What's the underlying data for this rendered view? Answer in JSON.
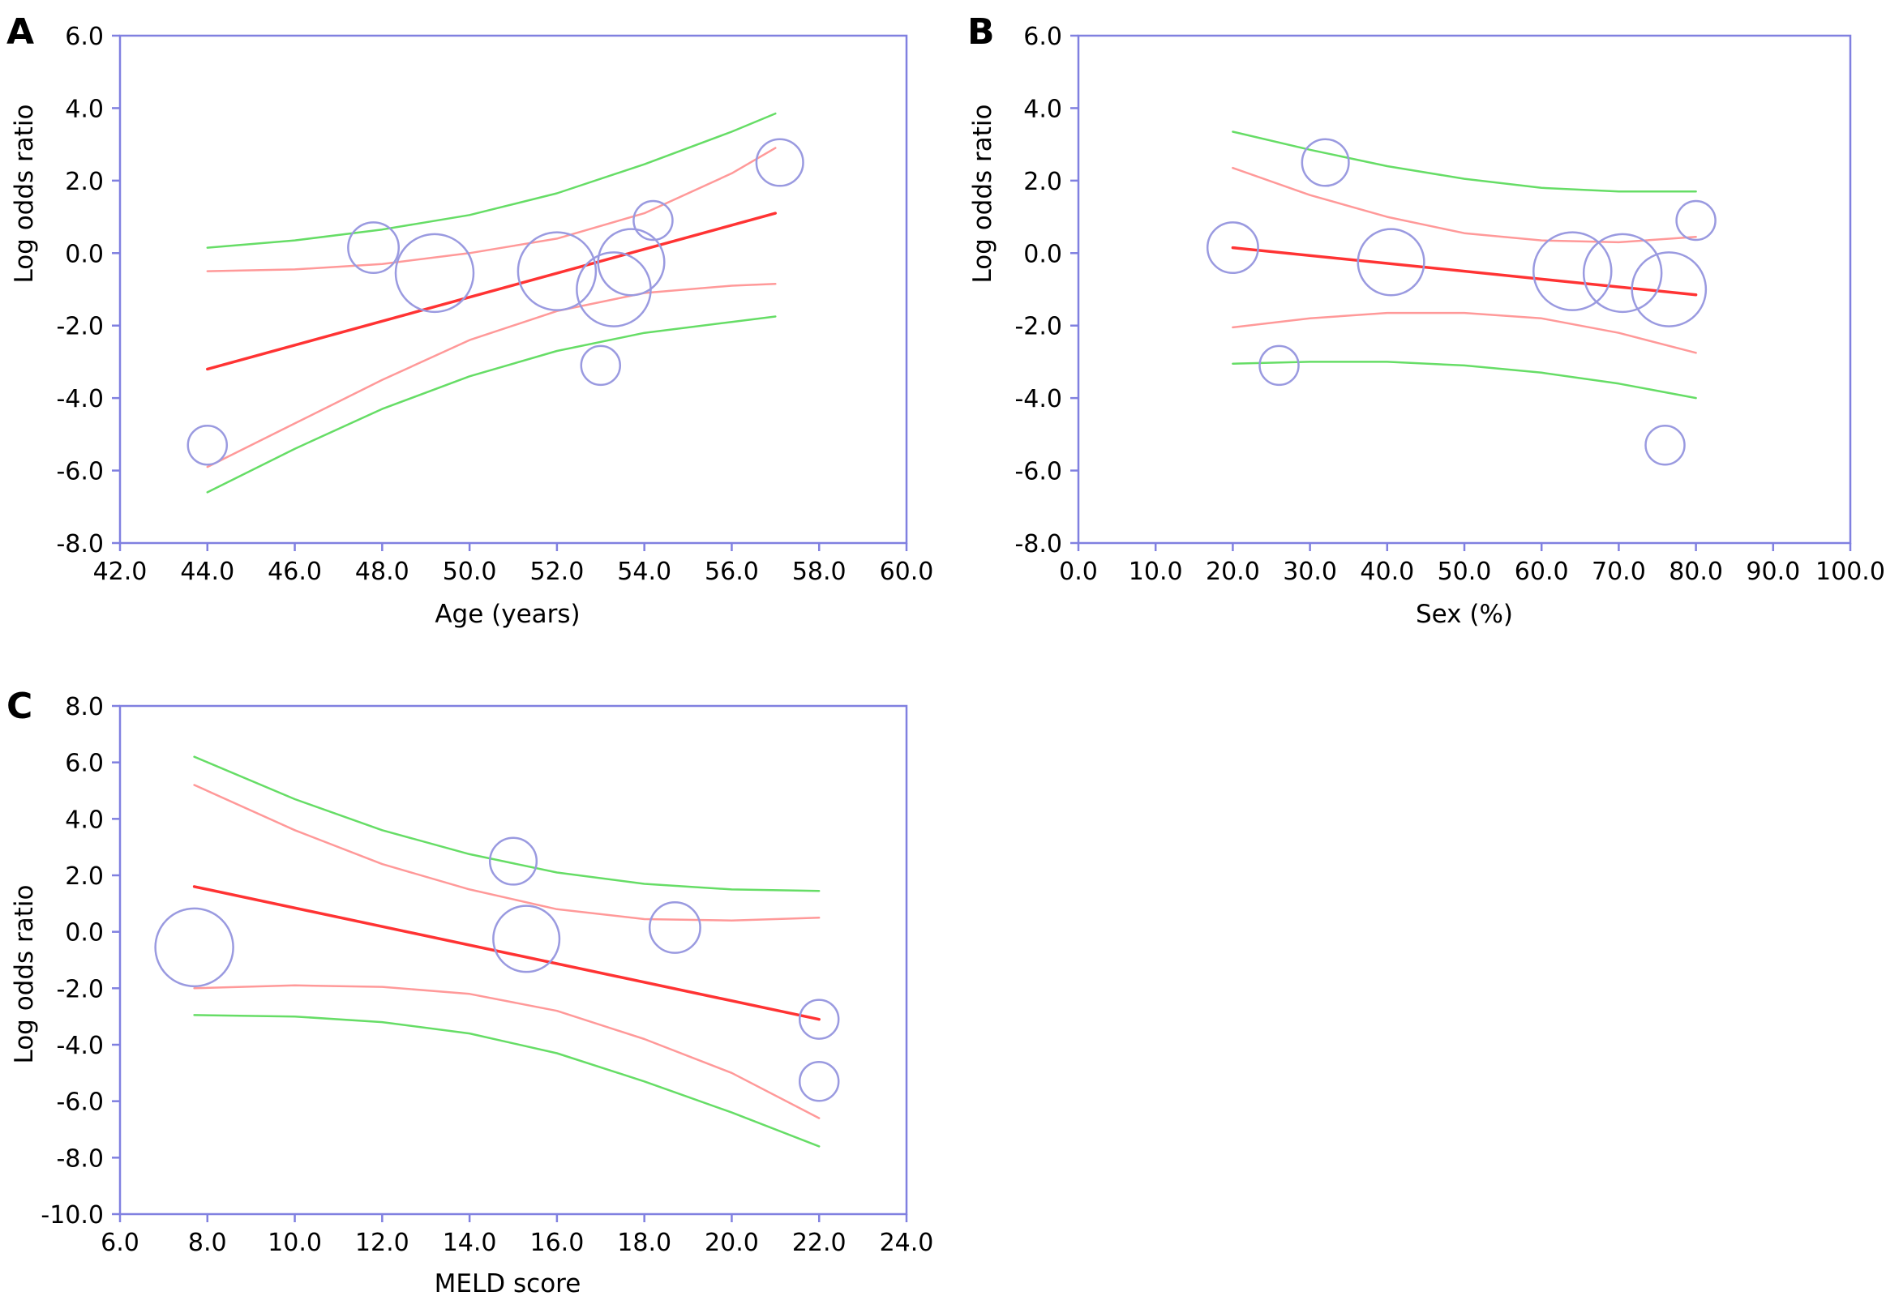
{
  "colors": {
    "frame": "#8080e0",
    "regression": "#ff3333",
    "ci_inner": "#ff9999",
    "ci_outer": "#66dd66",
    "bubble": "#9a9ae0"
  },
  "chart_data": [
    {
      "panel": "A",
      "type": "scatter",
      "xlabel": "Age (years)",
      "ylabel": "Log odds ratio",
      "xlim": [
        42,
        60
      ],
      "ylim": [
        -8,
        6
      ],
      "xticks": [
        "42.0",
        "44.0",
        "46.0",
        "48.0",
        "50.0",
        "52.0",
        "54.0",
        "56.0",
        "58.0",
        "60.0"
      ],
      "yticks": [
        "6.0",
        "4.0",
        "2.0",
        "0.0",
        "-2.0",
        "-4.0",
        "-6.0",
        "-8.0"
      ],
      "grid": false,
      "points": [
        {
          "x": 44.0,
          "y": -5.3,
          "size": 1.0
        },
        {
          "x": 47.8,
          "y": 0.15,
          "size": 1.3
        },
        {
          "x": 49.2,
          "y": -0.55,
          "size": 2.0
        },
        {
          "x": 52.0,
          "y": -0.5,
          "size": 2.0
        },
        {
          "x": 53.0,
          "y": -3.1,
          "size": 1.0
        },
        {
          "x": 53.3,
          "y": -1.0,
          "size": 1.9
        },
        {
          "x": 53.7,
          "y": -0.25,
          "size": 1.7
        },
        {
          "x": 54.2,
          "y": 0.9,
          "size": 1.0
        },
        {
          "x": 57.1,
          "y": 2.5,
          "size": 1.2
        }
      ],
      "regression": {
        "x": [
          44.0,
          57.0
        ],
        "y": [
          -3.2,
          1.1
        ]
      },
      "ci_inner_upper": {
        "x": [
          44.0,
          46.0,
          48.0,
          50.0,
          52.0,
          54.0,
          56.0,
          57.0
        ],
        "y": [
          -0.5,
          -0.45,
          -0.3,
          0.0,
          0.4,
          1.1,
          2.2,
          2.9
        ]
      },
      "ci_inner_lower": {
        "x": [
          44.0,
          46.0,
          48.0,
          50.0,
          52.0,
          54.0,
          56.0,
          57.0
        ],
        "y": [
          -5.9,
          -4.7,
          -3.5,
          -2.4,
          -1.6,
          -1.1,
          -0.9,
          -0.85
        ]
      },
      "ci_outer_upper": {
        "x": [
          44.0,
          46.0,
          48.0,
          50.0,
          52.0,
          54.0,
          56.0,
          57.0
        ],
        "y": [
          0.15,
          0.35,
          0.65,
          1.05,
          1.65,
          2.45,
          3.35,
          3.85
        ]
      },
      "ci_outer_lower": {
        "x": [
          44.0,
          46.0,
          48.0,
          50.0,
          52.0,
          54.0,
          56.0,
          57.0
        ],
        "y": [
          -6.6,
          -5.4,
          -4.3,
          -3.4,
          -2.7,
          -2.2,
          -1.9,
          -1.75
        ]
      }
    },
    {
      "panel": "B",
      "type": "scatter",
      "xlabel": "Sex (%)",
      "ylabel": "Log odds ratio",
      "xlim": [
        0,
        100
      ],
      "ylim": [
        -8,
        6
      ],
      "xticks": [
        "0.0",
        "10.0",
        "20.0",
        "30.0",
        "40.0",
        "50.0",
        "60.0",
        "70.0",
        "80.0",
        "90.0",
        "100.0"
      ],
      "yticks": [
        "6.0",
        "4.0",
        "2.0",
        "0.0",
        "-2.0",
        "-4.0",
        "-6.0",
        "-8.0"
      ],
      "grid": false,
      "points": [
        {
          "x": 20.0,
          "y": 0.15,
          "size": 1.3
        },
        {
          "x": 26.0,
          "y": -3.1,
          "size": 1.0
        },
        {
          "x": 32.0,
          "y": 2.5,
          "size": 1.2
        },
        {
          "x": 40.5,
          "y": -0.25,
          "size": 1.7
        },
        {
          "x": 64.0,
          "y": -0.5,
          "size": 2.0
        },
        {
          "x": 70.5,
          "y": -0.55,
          "size": 2.0
        },
        {
          "x": 76.0,
          "y": -5.3,
          "size": 1.0
        },
        {
          "x": 76.5,
          "y": -1.0,
          "size": 1.9
        },
        {
          "x": 80.0,
          "y": 0.9,
          "size": 1.0
        }
      ],
      "regression": {
        "x": [
          20.0,
          80.0
        ],
        "y": [
          0.15,
          -1.15
        ]
      },
      "ci_inner_upper": {
        "x": [
          20,
          30,
          40,
          50,
          60,
          70,
          80
        ],
        "y": [
          2.35,
          1.6,
          1.0,
          0.55,
          0.35,
          0.3,
          0.45
        ]
      },
      "ci_inner_lower": {
        "x": [
          20,
          30,
          40,
          50,
          60,
          70,
          80
        ],
        "y": [
          -2.05,
          -1.8,
          -1.65,
          -1.65,
          -1.8,
          -2.2,
          -2.75
        ]
      },
      "ci_outer_upper": {
        "x": [
          20,
          30,
          40,
          50,
          60,
          70,
          80
        ],
        "y": [
          3.35,
          2.85,
          2.4,
          2.05,
          1.8,
          1.7,
          1.7
        ]
      },
      "ci_outer_lower": {
        "x": [
          20,
          30,
          40,
          50,
          60,
          70,
          80
        ],
        "y": [
          -3.05,
          -3.0,
          -3.0,
          -3.1,
          -3.3,
          -3.6,
          -4.0
        ]
      }
    },
    {
      "panel": "C",
      "type": "scatter",
      "xlabel": "MELD score",
      "ylabel": "Log odds ratio",
      "xlim": [
        6,
        24
      ],
      "ylim": [
        -10,
        8
      ],
      "xticks": [
        "6.0",
        "8.0",
        "10.0",
        "12.0",
        "14.0",
        "16.0",
        "18.0",
        "20.0",
        "22.0",
        "24.0"
      ],
      "yticks": [
        "8.0",
        "6.0",
        "4.0",
        "2.0",
        "0.0",
        "-2.0",
        "-4.0",
        "-6.0",
        "-8.0",
        "-10.0"
      ],
      "grid": false,
      "points": [
        {
          "x": 7.7,
          "y": -0.55,
          "size": 2.0
        },
        {
          "x": 15.0,
          "y": 2.5,
          "size": 1.2
        },
        {
          "x": 15.3,
          "y": -0.25,
          "size": 1.7
        },
        {
          "x": 18.7,
          "y": 0.15,
          "size": 1.3
        },
        {
          "x": 22.0,
          "y": -3.1,
          "size": 1.0
        },
        {
          "x": 22.0,
          "y": -5.3,
          "size": 1.0
        }
      ],
      "regression": {
        "x": [
          7.7,
          22.0
        ],
        "y": [
          1.6,
          -3.1
        ]
      },
      "ci_inner_upper": {
        "x": [
          7.7,
          10,
          12,
          14,
          16,
          18,
          20,
          22
        ],
        "y": [
          5.2,
          3.6,
          2.4,
          1.5,
          0.8,
          0.45,
          0.4,
          0.5
        ]
      },
      "ci_inner_lower": {
        "x": [
          7.7,
          10,
          12,
          14,
          16,
          18,
          20,
          22
        ],
        "y": [
          -2.0,
          -1.9,
          -1.95,
          -2.2,
          -2.8,
          -3.8,
          -5.0,
          -6.6
        ]
      },
      "ci_outer_upper": {
        "x": [
          7.7,
          10,
          12,
          14,
          16,
          18,
          20,
          22
        ],
        "y": [
          6.2,
          4.7,
          3.6,
          2.75,
          2.1,
          1.7,
          1.5,
          1.45
        ]
      },
      "ci_outer_lower": {
        "x": [
          7.7,
          10,
          12,
          14,
          16,
          18,
          20,
          22
        ],
        "y": [
          -2.95,
          -3.0,
          -3.2,
          -3.6,
          -4.3,
          -5.3,
          -6.4,
          -7.6
        ]
      }
    }
  ]
}
